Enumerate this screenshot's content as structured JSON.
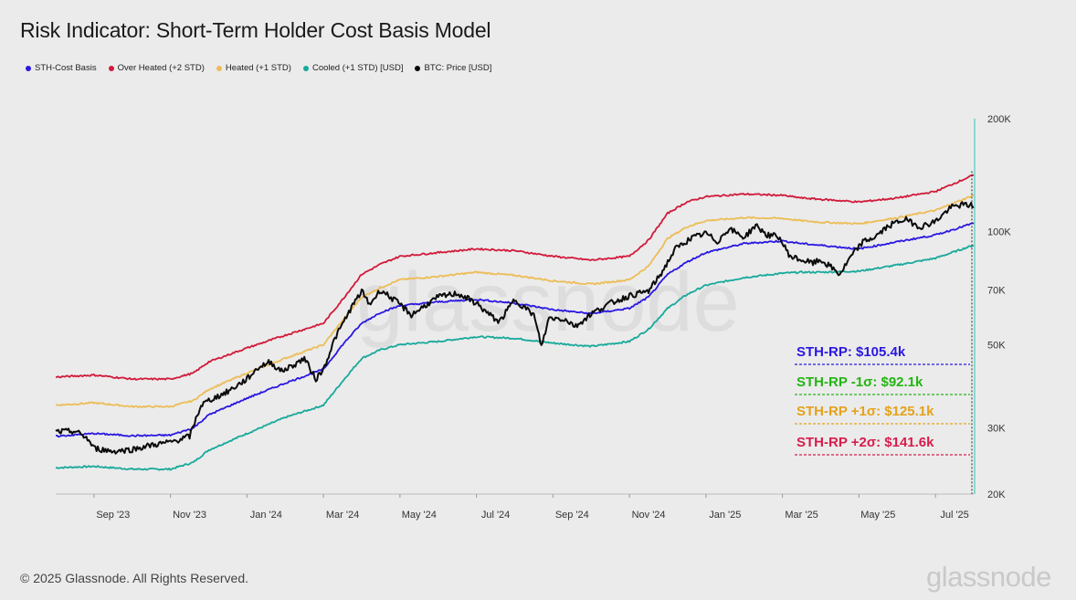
{
  "chart_data": {
    "type": "line",
    "title": "Risk Indicator: Short-Term Holder Cost Basis Model",
    "y_scale": "log",
    "ylim": [
      20000,
      200000
    ],
    "xlim": [
      "2023-08-01",
      "2025-07-31"
    ],
    "y_ticks": [
      {
        "value": 20000,
        "label": "20K"
      },
      {
        "value": 30000,
        "label": "30K"
      },
      {
        "value": 50000,
        "label": "50K"
      },
      {
        "value": 70000,
        "label": "70K"
      },
      {
        "value": 100000,
        "label": "100K"
      },
      {
        "value": 200000,
        "label": "200K"
      }
    ],
    "x_ticks": [
      {
        "t": 1.5,
        "label": "Sep '23"
      },
      {
        "t": 3.5,
        "label": "Nov '23"
      },
      {
        "t": 5.5,
        "label": "Jan '24"
      },
      {
        "t": 7.5,
        "label": "Mar '24"
      },
      {
        "t": 9.5,
        "label": "May '24"
      },
      {
        "t": 11.5,
        "label": "Jul '24"
      },
      {
        "t": 13.5,
        "label": "Sep '24"
      },
      {
        "t": 15.5,
        "label": "Nov '24"
      },
      {
        "t": 17.5,
        "label": "Jan '25"
      },
      {
        "t": 19.5,
        "label": "Mar '25"
      },
      {
        "t": 21.5,
        "label": "May '25"
      },
      {
        "t": 23.5,
        "label": "Jul '25"
      }
    ],
    "x_unit": "months since 2023-08-01",
    "series": [
      {
        "name": "STH-Cost Basis",
        "color": "#2a17e0",
        "points": [
          [
            0,
            28500
          ],
          [
            1,
            29000
          ],
          [
            2,
            28600
          ],
          [
            3,
            28700
          ],
          [
            3.6,
            30000
          ],
          [
            4,
            32500
          ],
          [
            5,
            36000
          ],
          [
            6,
            39500
          ],
          [
            7,
            43000
          ],
          [
            7.5,
            50000
          ],
          [
            8,
            57000
          ],
          [
            8.5,
            61000
          ],
          [
            9,
            63500
          ],
          [
            10,
            65000
          ],
          [
            11,
            66000
          ],
          [
            12,
            64500
          ],
          [
            13,
            62000
          ],
          [
            14,
            60500
          ],
          [
            15,
            62500
          ],
          [
            15.5,
            67000
          ],
          [
            16,
            77000
          ],
          [
            16.5,
            83000
          ],
          [
            17,
            88000
          ],
          [
            18,
            93000
          ],
          [
            19,
            94500
          ],
          [
            19.5,
            93000
          ],
          [
            20,
            92000
          ],
          [
            21,
            90000
          ],
          [
            22,
            94000
          ],
          [
            23,
            98000
          ],
          [
            24,
            105400
          ]
        ]
      },
      {
        "name": "Over Heated (+2 STD)",
        "color": "#d11a3a",
        "points": [
          [
            0,
            41000
          ],
          [
            1,
            41500
          ],
          [
            2,
            40500
          ],
          [
            3,
            40500
          ],
          [
            3.6,
            42000
          ],
          [
            4,
            45000
          ],
          [
            5,
            49000
          ],
          [
            6,
            53000
          ],
          [
            7,
            57000
          ],
          [
            7.5,
            66000
          ],
          [
            8,
            77000
          ],
          [
            8.5,
            82000
          ],
          [
            9,
            86000
          ],
          [
            10,
            88000
          ],
          [
            11,
            90000
          ],
          [
            12,
            89000
          ],
          [
            13,
            86000
          ],
          [
            14,
            84000
          ],
          [
            15,
            86000
          ],
          [
            15.5,
            95000
          ],
          [
            16,
            112000
          ],
          [
            16.5,
            120000
          ],
          [
            17,
            124000
          ],
          [
            18,
            126000
          ],
          [
            19,
            125000
          ],
          [
            19.5,
            123000
          ],
          [
            20,
            122000
          ],
          [
            21,
            120000
          ],
          [
            22,
            123000
          ],
          [
            23,
            128000
          ],
          [
            24,
            141600
          ]
        ]
      },
      {
        "name": "Heated (+1 STD)",
        "color": "#ecbd57",
        "points": [
          [
            0,
            34500
          ],
          [
            1,
            35000
          ],
          [
            2,
            34200
          ],
          [
            3,
            34200
          ],
          [
            3.6,
            35500
          ],
          [
            4,
            38000
          ],
          [
            5,
            42000
          ],
          [
            6,
            46000
          ],
          [
            7,
            50000
          ],
          [
            7.5,
            58000
          ],
          [
            8,
            67000
          ],
          [
            8.5,
            71000
          ],
          [
            9,
            74500
          ],
          [
            10,
            76000
          ],
          [
            11,
            78000
          ],
          [
            12,
            76500
          ],
          [
            13,
            74000
          ],
          [
            14,
            72500
          ],
          [
            15,
            74500
          ],
          [
            15.5,
            81000
          ],
          [
            16,
            96000
          ],
          [
            16.5,
            103000
          ],
          [
            17,
            107000
          ],
          [
            18,
            109000
          ],
          [
            19,
            108500
          ],
          [
            19.5,
            107000
          ],
          [
            20,
            106000
          ],
          [
            21,
            105000
          ],
          [
            22,
            109000
          ],
          [
            23,
            114000
          ],
          [
            24,
            125100
          ]
        ]
      },
      {
        "name": "Cooled (+1 STD) [USD]",
        "color": "#18a99a",
        "points": [
          [
            0,
            23500
          ],
          [
            1,
            23700
          ],
          [
            2,
            23300
          ],
          [
            3,
            23300
          ],
          [
            3.6,
            24300
          ],
          [
            4,
            26200
          ],
          [
            5,
            29000
          ],
          [
            6,
            32000
          ],
          [
            7,
            34500
          ],
          [
            7.5,
            40000
          ],
          [
            8,
            46000
          ],
          [
            8.5,
            48500
          ],
          [
            9,
            50000
          ],
          [
            10,
            51000
          ],
          [
            11,
            52500
          ],
          [
            12,
            52000
          ],
          [
            13,
            50500
          ],
          [
            14,
            49500
          ],
          [
            15,
            51000
          ],
          [
            15.5,
            55000
          ],
          [
            16,
            62500
          ],
          [
            16.5,
            68000
          ],
          [
            17,
            72000
          ],
          [
            18,
            75500
          ],
          [
            19,
            77500
          ],
          [
            19.5,
            78000
          ],
          [
            20,
            78000
          ],
          [
            21,
            78500
          ],
          [
            22,
            81500
          ],
          [
            23,
            85000
          ],
          [
            24,
            92100
          ]
        ]
      },
      {
        "name": "BTC: Price [USD]",
        "color": "#0b0b0b",
        "points": [
          [
            0,
            29300
          ],
          [
            0.5,
            29400
          ],
          [
            0.8,
            28300
          ],
          [
            1,
            26500
          ],
          [
            1.5,
            26000
          ],
          [
            2,
            26300
          ],
          [
            2.5,
            27000
          ],
          [
            3,
            27500
          ],
          [
            3.5,
            28500
          ],
          [
            3.8,
            34500
          ],
          [
            4,
            35500
          ],
          [
            4.5,
            37500
          ],
          [
            5,
            40500
          ],
          [
            5.3,
            43500
          ],
          [
            5.6,
            45000
          ],
          [
            5.9,
            42500
          ],
          [
            6.2,
            44000
          ],
          [
            6.5,
            46000
          ],
          [
            6.8,
            40500
          ],
          [
            7,
            43000
          ],
          [
            7.3,
            52000
          ],
          [
            7.7,
            62000
          ],
          [
            8,
            69500
          ],
          [
            8.2,
            64000
          ],
          [
            8.5,
            70000
          ],
          [
            9,
            64000
          ],
          [
            9.3,
            60000
          ],
          [
            9.6,
            63000
          ],
          [
            10,
            67000
          ],
          [
            10.5,
            68500
          ],
          [
            11,
            64500
          ],
          [
            11.3,
            60500
          ],
          [
            11.6,
            57500
          ],
          [
            12,
            66000
          ],
          [
            12.5,
            60000
          ],
          [
            12.7,
            49500
          ],
          [
            12.9,
            59000
          ],
          [
            13.3,
            58500
          ],
          [
            13.6,
            56000
          ],
          [
            14,
            60500
          ],
          [
            14.5,
            64500
          ],
          [
            15,
            67500
          ],
          [
            15.5,
            69500
          ],
          [
            15.8,
            76500
          ],
          [
            16.2,
            90000
          ],
          [
            16.6,
            96000
          ],
          [
            17,
            99000
          ],
          [
            17.3,
            94000
          ],
          [
            17.6,
            102000
          ],
          [
            18,
            96500
          ],
          [
            18.3,
            104000
          ],
          [
            18.6,
            98000
          ],
          [
            18.9,
            97000
          ],
          [
            19.2,
            86000
          ],
          [
            19.5,
            84000
          ],
          [
            19.8,
            82500
          ],
          [
            20,
            84000
          ],
          [
            20.3,
            80000
          ],
          [
            20.5,
            77000
          ],
          [
            20.8,
            86000
          ],
          [
            21.1,
            94000
          ],
          [
            21.4,
            96500
          ],
          [
            21.8,
            104000
          ],
          [
            22.2,
            108000
          ],
          [
            22.6,
            103000
          ],
          [
            23,
            106500
          ],
          [
            23.4,
            116000
          ],
          [
            23.7,
            118000
          ],
          [
            24,
            117500
          ]
        ]
      }
    ],
    "annotations": [
      {
        "label": "STH-RP: $105.4k",
        "color": "#2a17e0"
      },
      {
        "label": "STH-RP -1σ: $92.1k",
        "color": "#22b512"
      },
      {
        "label": "STH-RP +1σ: $125.1k",
        "color": "#e4a21a"
      },
      {
        "label": "STH-RP +2σ: $141.6k",
        "color": "#d61d4c"
      }
    ],
    "watermark": "glassnode"
  },
  "legend": [
    {
      "label": "STH-Cost Basis",
      "color": "#2a17e0"
    },
    {
      "label": "Over Heated (+2 STD)",
      "color": "#d11a3a"
    },
    {
      "label": "Heated (+1 STD)",
      "color": "#ecbd57"
    },
    {
      "label": "Cooled (+1 STD) [USD]",
      "color": "#18a99a"
    },
    {
      "label": "BTC: Price [USD]",
      "color": "#0b0b0b"
    }
  ],
  "footer": {
    "copyright": "© 2025 Glassnode. All Rights Reserved.",
    "brand": "glassnode"
  }
}
